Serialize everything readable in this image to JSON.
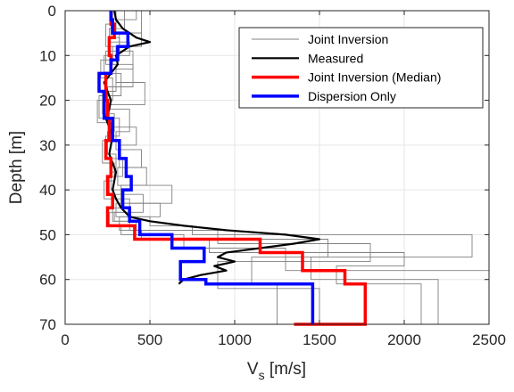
{
  "chart_data": {
    "type": "line",
    "xlabel": "V",
    "xlabel_sub": "s",
    "xlabel_unit": " [m/s]",
    "ylabel": "Depth [m]",
    "xlim": [
      0,
      2500
    ],
    "ylim": [
      0,
      70
    ],
    "y_reversed": true,
    "grid": true,
    "legend_position": "top-right",
    "x_ticks": [
      "0",
      "500",
      "1000",
      "1500",
      "2000",
      "2500"
    ],
    "y_ticks": [
      "0",
      "10",
      "20",
      "30",
      "40",
      "50",
      "60",
      "70"
    ],
    "series": [
      {
        "name": "Joint Inversion",
        "color": "#808080",
        "profiles": [
          {
            "vs": [
              300,
              270,
              320,
              240,
              300,
              220,
              290,
              250,
              300,
              270,
              330,
              280,
              420,
              1000,
              1550,
              1100,
              1250,
              1350
            ],
            "boundaries": [
              0,
              3,
              6,
              9,
              12,
              18,
              23,
              27,
              32,
              36,
              40,
              44,
              47,
              49,
              51,
              55,
              61,
              70
            ]
          },
          {
            "vs": [
              420,
              300,
              450,
              280,
              400,
              250,
              380,
              300,
              450,
              310,
              630,
              300,
              500,
              750,
              2400,
              1450,
              2200,
              1400
            ],
            "boundaries": [
              0,
              2,
              5,
              8,
              12,
              17,
              22,
              27,
              31,
              35,
              39,
              43,
              46,
              48,
              50,
              55,
              60,
              70
            ]
          },
          {
            "vs": [
              350,
              260,
              380,
              230,
              330,
              200,
              320,
              240,
              340,
              260,
              460,
              290,
              380,
              900,
              1800,
              1300,
              2500,
              1380
            ],
            "boundaries": [
              0,
              4,
              7,
              10,
              14,
              19,
              24,
              28,
              33,
              37,
              41,
              45,
              47,
              49,
              52,
              56,
              58,
              70
            ]
          },
          {
            "vs": [
              280,
              240,
              300,
              210,
              280,
              190,
              270,
              220,
              290,
              230,
              380,
              260,
              330,
              700,
              1300,
              900,
              1500,
              1320
            ],
            "boundaries": [
              0,
              3,
              8,
              11,
              15,
              20,
              25,
              29,
              34,
              38,
              42,
              45,
              48,
              50,
              53,
              56,
              62,
              70
            ]
          },
          {
            "vs": [
              450,
              320,
              400,
              300,
              470,
              260,
              420,
              320,
              480,
              330,
              560,
              320,
              450,
              850,
              2000,
              1600,
              2100,
              1460
            ],
            "boundaries": [
              0,
              5,
              9,
              13,
              16,
              21,
              26,
              30,
              35,
              39,
              43,
              46,
              49,
              51,
              54,
              57,
              61,
              70
            ]
          }
        ]
      },
      {
        "name": "Measured",
        "color": "#000000",
        "vs": [
          290,
          300,
          340,
          420,
          500,
          380,
          300,
          310,
          270,
          230,
          250,
          270,
          260,
          240,
          260,
          280,
          270,
          260,
          280,
          300,
          290,
          280,
          300,
          330,
          380,
          500,
          700,
          950,
          1300,
          1500,
          1350,
          1150,
          950,
          900,
          1000,
          880,
          950,
          800,
          700,
          670
        ],
        "depth": [
          0,
          2,
          4,
          6,
          7,
          8,
          10,
          12,
          14,
          16,
          18,
          20,
          22,
          24,
          26,
          28,
          30,
          32,
          34,
          36,
          38,
          40,
          42,
          44,
          46,
          47,
          48,
          49,
          50,
          51,
          52,
          53,
          54,
          55,
          56,
          57,
          58,
          59,
          60,
          61
        ]
      },
      {
        "name": "Joint Inversion (Median)",
        "color": "#ff0000",
        "vs": [
          270,
          290,
          260,
          270,
          240,
          250,
          260,
          240,
          270,
          250,
          280,
          250,
          410,
          1150,
          1400,
          1650,
          1770,
          1350
        ],
        "boundaries": [
          0,
          3,
          6,
          10,
          14,
          20,
          24,
          29,
          33,
          37,
          41,
          44,
          48,
          51,
          54,
          58,
          61,
          70
        ]
      },
      {
        "name": "Dispersion Only",
        "color": "#0000ff",
        "vs": [
          270,
          280,
          370,
          310,
          270,
          200,
          230,
          280,
          320,
          360,
          390,
          340,
          380,
          440,
          630,
          820,
          680,
          830,
          1460
        ],
        "boundaries": [
          0,
          2,
          5,
          8,
          11,
          14,
          18,
          24,
          29,
          33,
          37,
          40,
          44,
          47,
          50,
          53,
          56,
          60,
          61,
          70
        ]
      }
    ]
  }
}
